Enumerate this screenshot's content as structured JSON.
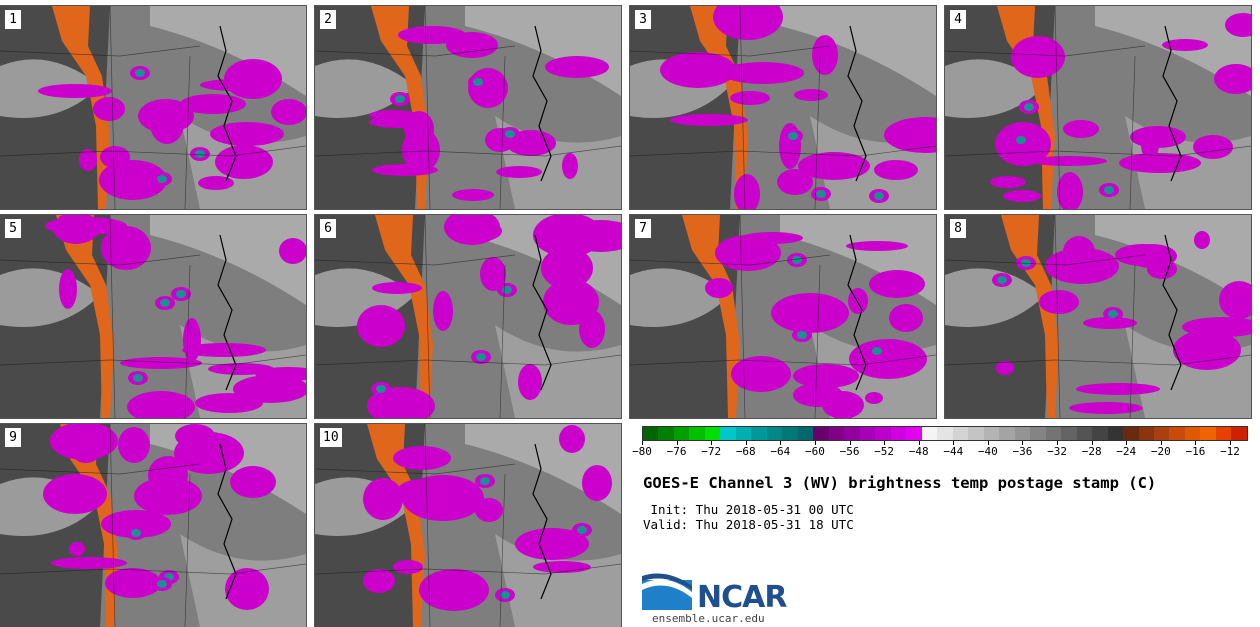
{
  "panels": [
    {
      "label": "1"
    },
    {
      "label": "2"
    },
    {
      "label": "3"
    },
    {
      "label": "4"
    },
    {
      "label": "5"
    },
    {
      "label": "6"
    },
    {
      "label": "7"
    },
    {
      "label": "8"
    },
    {
      "label": "9"
    },
    {
      "label": "10"
    }
  ],
  "colorbar": {
    "ticks": [
      "−80",
      "−76",
      "−72",
      "−68",
      "−64",
      "−60",
      "−56",
      "−52",
      "−48",
      "−44",
      "−40",
      "−36",
      "−32",
      "−28",
      "−24",
      "−20",
      "−16",
      "−12"
    ],
    "colors": [
      "#006400",
      "#008000",
      "#00a000",
      "#00c000",
      "#00e000",
      "#00c8c8",
      "#00b0b0",
      "#009898",
      "#008888",
      "#007878",
      "#006868",
      "#6a0070",
      "#800088",
      "#9400a0",
      "#a800b8",
      "#bc00cc",
      "#d000e0",
      "#e400f0",
      "#f4f4f4",
      "#e4e4e4",
      "#d4d4d4",
      "#c4c4c4",
      "#b4b4b4",
      "#a4a4a4",
      "#949494",
      "#848484",
      "#747474",
      "#646464",
      "#545454",
      "#444444",
      "#343434",
      "#6a2a10",
      "#8a3410",
      "#a84010",
      "#c84c08",
      "#e05800",
      "#f06400",
      "#e84000",
      "#d02000"
    ]
  },
  "title": "GOES-E Channel 3 (WV) brightness temp postage stamp (C)",
  "init": " Init: Thu 2018-05-31 00 UTC",
  "valid": "Valid: Thu 2018-05-31 18 UTC",
  "logo": {
    "text": "NCAR",
    "url": "ensemble.ucar.edu"
  },
  "colors": {
    "moist": "#cc00cc",
    "cold_core": "#1a9090",
    "dry": "#e0661c",
    "background": "#8a8a8a"
  }
}
